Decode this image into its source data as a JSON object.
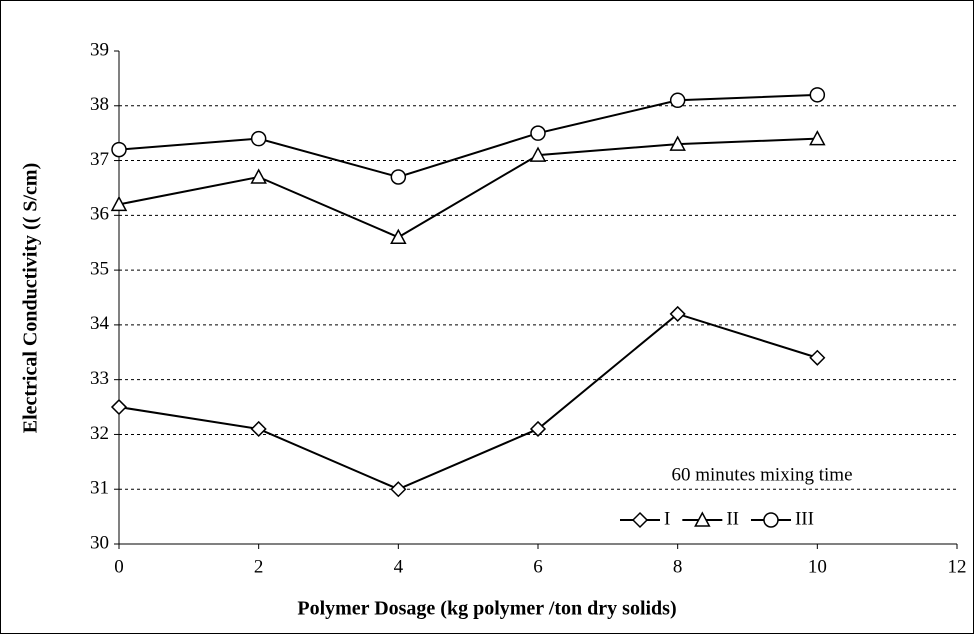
{
  "chart_data": {
    "type": "line",
    "x_label": "Polymer Dosage (kg polymer /ton dry solids)",
    "y_label": "Electrical Conductivity (( S/cm)",
    "annotation": "60 minutes mixing time",
    "x": [
      0,
      2,
      4,
      6,
      8,
      10
    ],
    "series": [
      {
        "name": "I",
        "color": "#000000",
        "marker": "diamond",
        "values": [
          32.5,
          32.1,
          31.0,
          32.1,
          34.2,
          33.4
        ]
      },
      {
        "name": "II",
        "color": "#000000",
        "marker": "triangle",
        "values": [
          36.2,
          36.7,
          35.6,
          37.1,
          37.3,
          37.4
        ]
      },
      {
        "name": "III",
        "color": "#000000",
        "marker": "circle",
        "values": [
          37.2,
          37.4,
          36.7,
          37.5,
          38.1,
          38.2
        ]
      }
    ],
    "xlim": [
      0,
      12
    ],
    "xticks": [
      0,
      2,
      4,
      6,
      8,
      10,
      12
    ],
    "ylim": [
      30,
      39
    ],
    "yticks": [
      30,
      31,
      32,
      33,
      34,
      35,
      36,
      37,
      38,
      39
    ],
    "grid": true,
    "legend": "lower right"
  }
}
